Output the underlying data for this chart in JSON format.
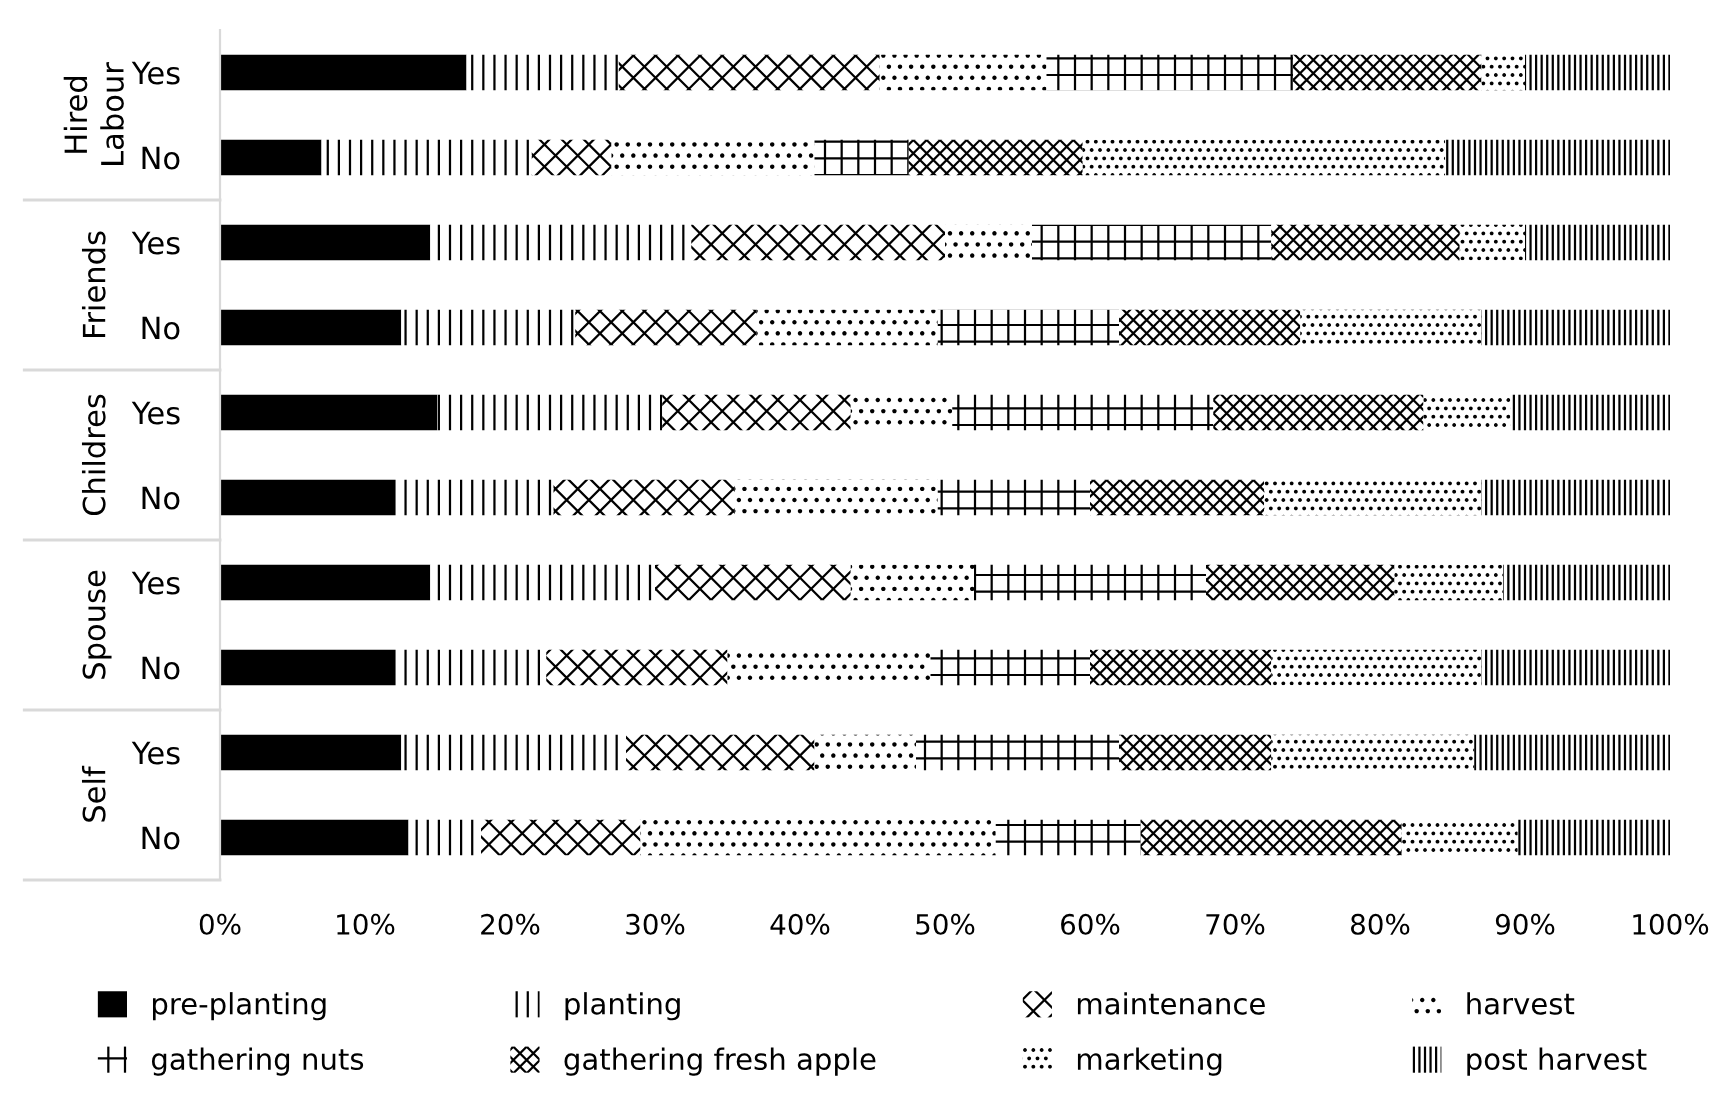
{
  "chart_data": {
    "type": "bar",
    "orientation": "horizontal",
    "stacked": true,
    "categories": [
      "Yes",
      "No",
      "Yes",
      "No",
      "Yes",
      "No",
      "Yes",
      "No",
      "Yes",
      "No"
    ],
    "annotations": [
      "Hired Labour",
      "Friends",
      "Childres",
      "Spouse",
      "Self"
    ],
    "series": [
      {
        "name": "pre-planting",
        "color": "#000000",
        "values": [
          17,
          7,
          14.5,
          12.5,
          15,
          12,
          14.5,
          12,
          12.5,
          13
        ]
      },
      {
        "name": "planting",
        "color": "#000000",
        "values": [
          10.5,
          14.5,
          18,
          12,
          15.5,
          11,
          15.5,
          10.5,
          15.5,
          5
        ]
      },
      {
        "name": "maintenance",
        "color": "#000000",
        "values": [
          18,
          5.5,
          17.5,
          12.5,
          13,
          12.5,
          13.5,
          12.5,
          13,
          11
        ]
      },
      {
        "name": "harvest",
        "color": "#000000",
        "values": [
          11.5,
          14,
          6,
          12.5,
          7,
          14,
          8.5,
          14,
          7,
          24.5
        ]
      },
      {
        "name": "gathering nuts",
        "color": "#000000",
        "values": [
          17,
          6.5,
          16.5,
          12.5,
          18,
          10.5,
          16,
          11,
          14,
          10
        ]
      },
      {
        "name": "gathering fresh apple",
        "color": "#000000",
        "values": [
          13,
          12,
          13,
          12.5,
          14.5,
          12,
          13,
          12.5,
          10.5,
          18
        ]
      },
      {
        "name": "marketing",
        "color": "#000000",
        "values": [
          3,
          25,
          4.5,
          12.5,
          6,
          15,
          7.5,
          14.5,
          14,
          8
        ]
      },
      {
        "name": "post harvest",
        "color": "#000000",
        "values": [
          10,
          15.5,
          10,
          13,
          11,
          13,
          11.5,
          13,
          13.5,
          10.5
        ]
      }
    ],
    "xlim": [
      0,
      100
    ],
    "xticks": [
      {
        "value": 0,
        "label": "0%"
      },
      {
        "value": 10,
        "label": "10%"
      },
      {
        "value": 20,
        "label": "20%"
      },
      {
        "value": 30,
        "label": "30%"
      },
      {
        "value": 40,
        "label": "40%"
      },
      {
        "value": 50,
        "label": "50%"
      },
      {
        "value": 60,
        "label": "60%"
      },
      {
        "value": 70,
        "label": "70%"
      },
      {
        "value": 80,
        "label": "80%"
      },
      {
        "value": 90,
        "label": "90%"
      },
      {
        "value": 100,
        "label": "100%"
      }
    ],
    "grid": false,
    "legend": "bottom"
  }
}
